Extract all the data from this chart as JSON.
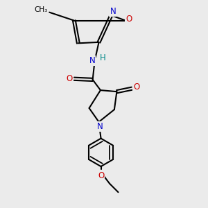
{
  "bg_color": "#ebebeb",
  "bond_color": "#000000",
  "N_color": "#0000cc",
  "O_color": "#cc0000",
  "H_color": "#008888",
  "lw": 1.5,
  "figsize": [
    3.0,
    3.0
  ],
  "dpi": 100,
  "xlim": [
    0,
    10
  ],
  "ylim": [
    0,
    10
  ]
}
